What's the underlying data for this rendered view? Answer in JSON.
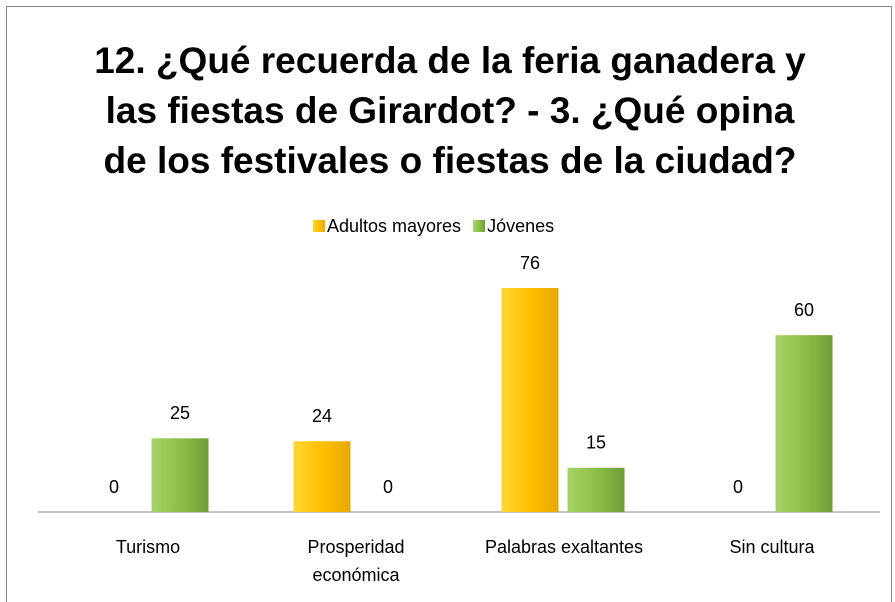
{
  "chart_data": {
    "type": "bar",
    "title": "12. ¿Qué recuerda de la feria ganadera y las fiestas de Girardot? - 3. ¿Qué opina de los festivales o fiestas de la ciudad?",
    "categories": [
      "Turismo",
      "Prosperidad económica",
      "Palabras exaltantes",
      "Sin cultura"
    ],
    "series": [
      {
        "name": "Adultos mayores",
        "color": "#ffc000",
        "values": [
          0,
          24,
          76,
          0
        ]
      },
      {
        "name": "Jóvenes",
        "color": "#8dbf47",
        "values": [
          25,
          0,
          15,
          60
        ]
      }
    ],
    "legend": "top",
    "grid": false
  }
}
